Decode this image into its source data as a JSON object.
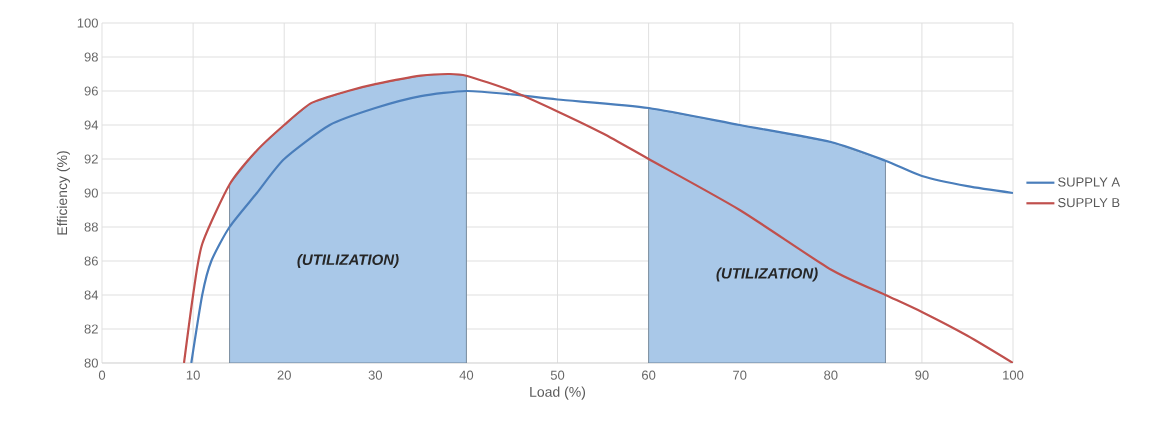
{
  "chart_data": {
    "type": "line",
    "xlabel": "Load (%)",
    "ylabel": "Efficiency (%)",
    "xlim": [
      0,
      100
    ],
    "ylim": [
      80,
      100
    ],
    "xticks": [
      0,
      10,
      20,
      30,
      40,
      50,
      60,
      70,
      80,
      90,
      100
    ],
    "yticks": [
      80,
      82,
      84,
      86,
      88,
      90,
      92,
      94,
      96,
      98,
      100
    ],
    "grid": true,
    "legend": "right",
    "series": [
      {
        "type": "area",
        "color": "#a9c8e8",
        "x": [
          14,
          17,
          20,
          23,
          27,
          30,
          35,
          38,
          40
        ],
        "values": [
          90.5,
          92.5,
          94,
          95.3,
          96,
          96.4,
          96.9,
          97,
          96.9
        ]
      },
      {
        "type": "area",
        "color": "#a9c8e8",
        "x": [
          60,
          70,
          80,
          86
        ],
        "values": [
          95,
          94,
          93,
          91.9
        ]
      },
      {
        "name": "SUPPLY A",
        "color": "#4a7ebb",
        "x": [
          9.8,
          11,
          12,
          14,
          17,
          20,
          25,
          30,
          35,
          40,
          45,
          50,
          60,
          70,
          80,
          86,
          90,
          95,
          100
        ],
        "values": [
          80,
          84,
          86,
          88,
          90,
          92,
          94,
          95,
          95.7,
          96,
          95.8,
          95.5,
          95,
          94,
          93,
          91.9,
          91,
          90.4,
          90
        ]
      },
      {
        "name": "SUPPLY B",
        "color": "#c0504d",
        "x": [
          9,
          10,
          11,
          14,
          17,
          20,
          23,
          27,
          30,
          35,
          38,
          40,
          45,
          50,
          55,
          60,
          70,
          80,
          86,
          90,
          95,
          100
        ],
        "values": [
          80,
          84,
          87,
          90.5,
          92.5,
          94,
          95.3,
          96,
          96.4,
          96.9,
          97,
          96.9,
          96,
          94.8,
          93.5,
          92,
          89,
          85.5,
          84,
          83,
          81.6,
          80
        ]
      }
    ],
    "annotations": [
      "(UTILIZATION)",
      "(UTILIZATION)"
    ]
  }
}
